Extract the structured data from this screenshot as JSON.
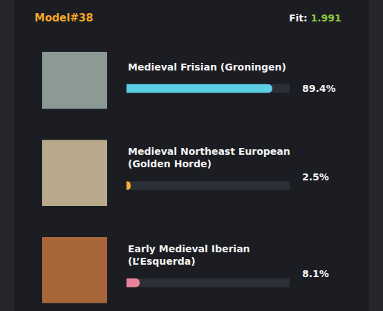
{
  "chart_data": {
    "type": "bar",
    "title": "Model#38",
    "subtitle": "Fit: 1.991",
    "orientation": "horizontal",
    "categories": [
      "Medieval Frisian (Groningen)",
      "Medieval Northeast European (Golden Horde)",
      "Early Medieval Iberian (L’Esquerda)"
    ],
    "values": [
      89.4,
      2.5,
      8.1
    ],
    "value_labels": [
      "89.4%",
      "2.5%",
      "8.1%"
    ],
    "colors": [
      "#5ccfe6",
      "#f7b52c",
      "#e8839b"
    ],
    "xlim": [
      0,
      100
    ],
    "grid": false,
    "data_labels": true,
    "tick_labels": false
  }
}
